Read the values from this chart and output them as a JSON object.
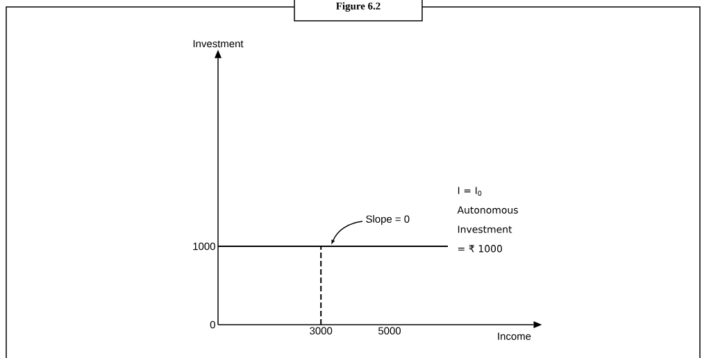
{
  "chart_data": {
    "type": "line",
    "title": "Figure 6.2",
    "xlabel": "Income",
    "ylabel": "Investment",
    "xlim": [
      0,
      9200
    ],
    "ylim": [
      0,
      3400
    ],
    "xticks": [
      3000,
      5000
    ],
    "yticks": [
      0,
      1000
    ],
    "series": [
      {
        "x": [
          0,
          6700
        ],
        "values": [
          1000,
          1000
        ],
        "color": "#000000",
        "line_style": "solid"
      },
      {
        "x": [
          3000,
          3000
        ],
        "values": [
          0,
          1000
        ],
        "color": "#000000",
        "line_style": "dashed"
      }
    ],
    "annotations": [
      {
        "text": "Slope = 0",
        "x": 3300,
        "y": 1000
      },
      "I = I$_{0}$",
      "Autonomous Investment = ₹ 1000"
    ]
  }
}
